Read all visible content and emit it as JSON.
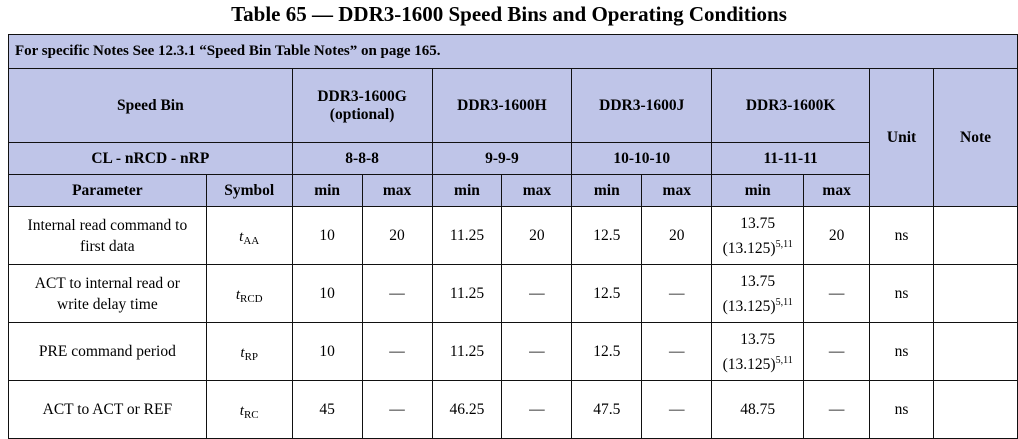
{
  "title": "Table 65 — DDR3-1600 Speed Bins and Operating Conditions",
  "note_text": "For specific Notes See 12.3.1 “Speed Bin Table Notes” on page 165.",
  "header": {
    "speed_bin": "Speed Bin",
    "bins": [
      {
        "name": "DDR3-1600G",
        "sub": "(optional)",
        "timing": "8-8-8"
      },
      {
        "name": "DDR3-1600H",
        "sub": "",
        "timing": "9-9-9"
      },
      {
        "name": "DDR3-1600J",
        "sub": "",
        "timing": "10-10-10"
      },
      {
        "name": "DDR3-1600K",
        "sub": "",
        "timing": "11-11-11"
      }
    ],
    "cl_label": "CL - nRCD - nRP",
    "unit": "Unit",
    "note": "Note",
    "parameter": "Parameter",
    "symbol": "Symbol",
    "min": "min",
    "max": "max"
  },
  "rows": [
    {
      "parameter": [
        "Internal read command to",
        "first data"
      ],
      "symbol": {
        "t": "t",
        "sub": "AA"
      },
      "g_min": "10",
      "g_max": "20",
      "h_min": "11.25",
      "h_max": "20",
      "j_min": "12.5",
      "j_max": "20",
      "k_min": "13.75",
      "k_min_alt": "(13.125)",
      "k_min_alt_sup": "5,11",
      "k_max": "20",
      "unit": "ns",
      "note": ""
    },
    {
      "parameter": [
        "ACT to internal read or",
        "write delay time"
      ],
      "symbol": {
        "t": "t",
        "sub": "RCD"
      },
      "g_min": "10",
      "g_max": "—",
      "h_min": "11.25",
      "h_max": "—",
      "j_min": "12.5",
      "j_max": "—",
      "k_min": "13.75",
      "k_min_alt": "(13.125)",
      "k_min_alt_sup": "5,11",
      "k_max": "—",
      "unit": "ns",
      "note": ""
    },
    {
      "parameter": [
        "PRE command period",
        ""
      ],
      "symbol": {
        "t": "t",
        "sub": "RP"
      },
      "g_min": "10",
      "g_max": "—",
      "h_min": "11.25",
      "h_max": "—",
      "j_min": "12.5",
      "j_max": "—",
      "k_min": "13.75",
      "k_min_alt": "(13.125)",
      "k_min_alt_sup": "5,11",
      "k_max": "—",
      "unit": "ns",
      "note": ""
    },
    {
      "parameter": [
        "ACT to ACT or REF",
        ""
      ],
      "symbol": {
        "t": "t",
        "sub": "RC"
      },
      "g_min": "45",
      "g_max": "—",
      "h_min": "46.25",
      "h_max": "—",
      "j_min": "47.5",
      "j_max": "—",
      "k_min": "48.75",
      "k_min_alt": "",
      "k_min_alt_sup": "",
      "k_max": "—",
      "unit": "ns",
      "note": ""
    }
  ]
}
